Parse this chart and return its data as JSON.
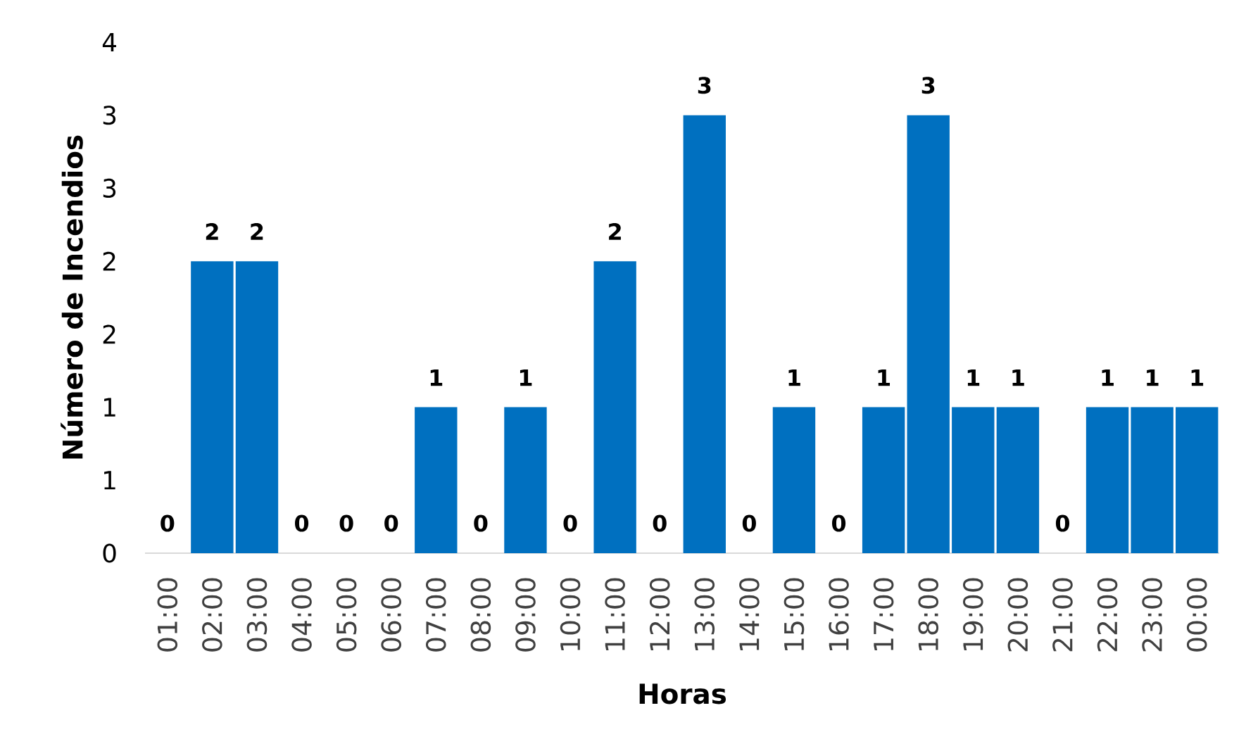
{
  "chart_data": {
    "type": "bar",
    "xlabel": "Horas",
    "ylabel": "Número de Incendios",
    "categories": [
      "01:00",
      "02:00",
      "03:00",
      "04:00",
      "05:00",
      "06:00",
      "07:00",
      "08:00",
      "09:00",
      "10:00",
      "11:00",
      "12:00",
      "13:00",
      "14:00",
      "15:00",
      "16:00",
      "17:00",
      "18:00",
      "19:00",
      "20:00",
      "21:00",
      "22:00",
      "23:00",
      "00:00"
    ],
    "values": [
      0,
      2,
      2,
      0,
      0,
      0,
      1,
      0,
      1,
      0,
      2,
      0,
      3,
      0,
      1,
      0,
      1,
      3,
      1,
      1,
      0,
      1,
      1,
      1
    ],
    "color": "#0070c0",
    "data_labels": true,
    "ylim": [
      0,
      3.5
    ],
    "yticks": [
      0,
      {
        "value": 0.5,
        "label": "1"
      },
      1,
      {
        "value": 1.5,
        "label": "2"
      },
      2,
      {
        "value": 2.5,
        "label": "3"
      },
      3,
      {
        "value": 3.5,
        "label": "4"
      }
    ]
  }
}
